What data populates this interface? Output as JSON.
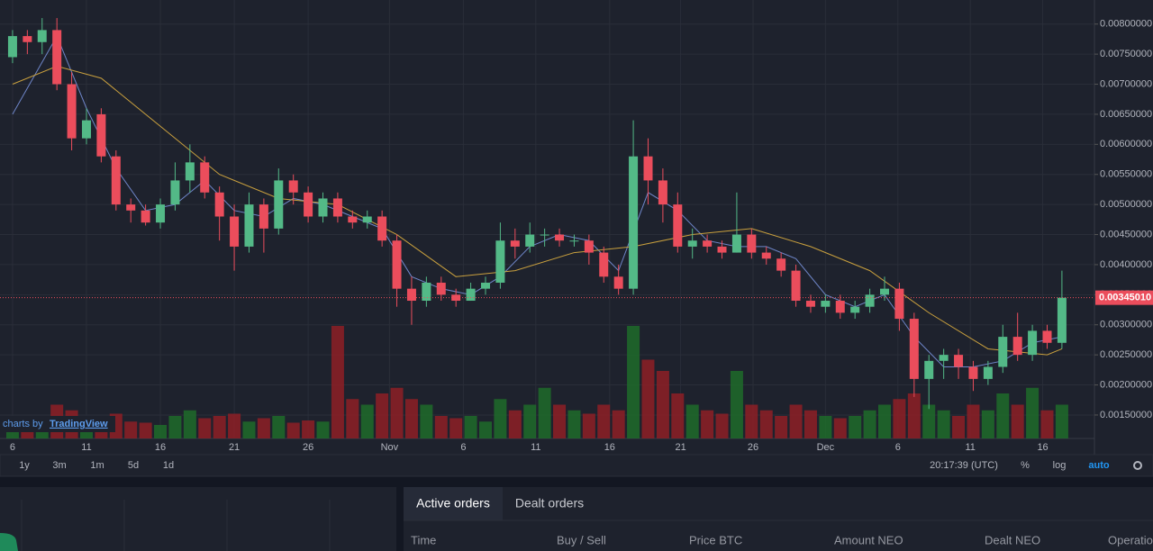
{
  "chart_data": {
    "type": "candlestick",
    "x": [
      0,
      1,
      2,
      3,
      4,
      5,
      6,
      7,
      8,
      9,
      10,
      11,
      12,
      13,
      14,
      15,
      16,
      17,
      18,
      19,
      20,
      21,
      22,
      23,
      24,
      25,
      26,
      27,
      28,
      29,
      30,
      31,
      32,
      33,
      34,
      35,
      36,
      37,
      38,
      39,
      40,
      41,
      42,
      43,
      44,
      45,
      46,
      47,
      48,
      49,
      50,
      51,
      52,
      53,
      54,
      55,
      56,
      57,
      58,
      59,
      60,
      61,
      62,
      63,
      64,
      65,
      66,
      67,
      68,
      69,
      70,
      71
    ],
    "open": [
      0.00745,
      0.0078,
      0.0077,
      0.0079,
      0.007,
      0.0061,
      0.0065,
      0.0058,
      0.005,
      0.0049,
      0.0047,
      0.005,
      0.0054,
      0.0057,
      0.0052,
      0.0048,
      0.0043,
      0.005,
      0.0046,
      0.0054,
      0.0052,
      0.0048,
      0.0051,
      0.0048,
      0.0047,
      0.0048,
      0.0044,
      0.0036,
      0.0034,
      0.0037,
      0.0035,
      0.0034,
      0.0036,
      0.0037,
      0.0044,
      0.0043,
      0.0045,
      0.0045,
      0.0044,
      0.0044,
      0.0042,
      0.0038,
      0.0036,
      0.0058,
      0.0054,
      0.005,
      0.0043,
      0.0044,
      0.0043,
      0.0042,
      0.0045,
      0.0042,
      0.0041,
      0.0039,
      0.0034,
      0.0033,
      0.0034,
      0.0032,
      0.0033,
      0.0035,
      0.0036,
      0.0031,
      0.0021,
      0.0024,
      0.0025,
      0.0023,
      0.0021,
      0.0023,
      0.0028,
      0.0025,
      0.0029,
      0.0027
    ],
    "close": [
      0.0078,
      0.0077,
      0.0079,
      0.007,
      0.0061,
      0.0064,
      0.0058,
      0.005,
      0.0049,
      0.0047,
      0.005,
      0.0054,
      0.0057,
      0.0052,
      0.0048,
      0.0043,
      0.005,
      0.0046,
      0.0054,
      0.0052,
      0.0048,
      0.0051,
      0.0048,
      0.0047,
      0.0048,
      0.0044,
      0.0036,
      0.0034,
      0.0037,
      0.0035,
      0.0034,
      0.0036,
      0.0037,
      0.0044,
      0.0043,
      0.0045,
      0.0045,
      0.0044,
      0.0044,
      0.0042,
      0.0038,
      0.0036,
      0.0058,
      0.0054,
      0.005,
      0.0043,
      0.0044,
      0.0043,
      0.0042,
      0.0045,
      0.0042,
      0.0041,
      0.0039,
      0.0034,
      0.0033,
      0.0034,
      0.0032,
      0.0033,
      0.0035,
      0.0036,
      0.0031,
      0.0021,
      0.0024,
      0.0025,
      0.0023,
      0.0021,
      0.0023,
      0.0028,
      0.0025,
      0.0029,
      0.0027,
      0.00345
    ],
    "high": [
      0.0079,
      0.0079,
      0.0081,
      0.0081,
      0.0072,
      0.0066,
      0.0066,
      0.0059,
      0.0051,
      0.005,
      0.0051,
      0.0057,
      0.006,
      0.0058,
      0.0053,
      0.005,
      0.0052,
      0.0051,
      0.0056,
      0.0055,
      0.0053,
      0.0052,
      0.0052,
      0.0049,
      0.0049,
      0.0049,
      0.0045,
      0.0038,
      0.0038,
      0.0038,
      0.0036,
      0.0037,
      0.0038,
      0.0047,
      0.0046,
      0.0047,
      0.0046,
      0.0046,
      0.0045,
      0.0045,
      0.0043,
      0.004,
      0.0064,
      0.0061,
      0.0056,
      0.0052,
      0.0046,
      0.0045,
      0.0044,
      0.0052,
      0.0046,
      0.0043,
      0.0042,
      0.004,
      0.0035,
      0.0035,
      0.0035,
      0.0034,
      0.0036,
      0.0038,
      0.0037,
      0.0032,
      0.0025,
      0.0026,
      0.0026,
      0.0024,
      0.0024,
      0.003,
      0.0032,
      0.003,
      0.003,
      0.0039
    ],
    "low": [
      0.00735,
      0.0075,
      0.0075,
      0.0069,
      0.0059,
      0.006,
      0.0057,
      0.0049,
      0.0047,
      0.00465,
      0.0046,
      0.0049,
      0.0052,
      0.0051,
      0.0044,
      0.0039,
      0.0042,
      0.0042,
      0.0045,
      0.005,
      0.0047,
      0.0047,
      0.0047,
      0.0046,
      0.0046,
      0.0043,
      0.0033,
      0.003,
      0.0033,
      0.0034,
      0.0033,
      0.0034,
      0.0035,
      0.0036,
      0.0041,
      0.0042,
      0.0043,
      0.0043,
      0.0043,
      0.004,
      0.0037,
      0.0035,
      0.0035,
      0.005,
      0.0047,
      0.0042,
      0.0041,
      0.0042,
      0.0041,
      0.0042,
      0.0041,
      0.004,
      0.0038,
      0.0033,
      0.0032,
      0.0032,
      0.0031,
      0.0031,
      0.0032,
      0.0034,
      0.0029,
      0.0018,
      0.0016,
      0.0021,
      0.0021,
      0.0019,
      0.002,
      0.0022,
      0.0024,
      0.0024,
      0.0026,
      0.0026
    ],
    "volume": [
      15,
      12,
      14,
      30,
      25,
      20,
      18,
      22,
      15,
      14,
      12,
      20,
      25,
      18,
      20,
      22,
      15,
      18,
      20,
      14,
      16,
      15,
      100,
      35,
      30,
      40,
      45,
      35,
      30,
      20,
      18,
      20,
      15,
      35,
      25,
      30,
      45,
      30,
      25,
      22,
      30,
      25,
      100,
      70,
      60,
      40,
      30,
      25,
      22,
      60,
      30,
      25,
      20,
      30,
      25,
      20,
      18,
      20,
      25,
      30,
      35,
      40,
      30,
      25,
      20,
      30,
      25,
      40,
      30,
      45,
      25,
      30
    ],
    "up_color": "#53b987",
    "down_color": "#eb4d5c",
    "up_volume_color": "#1e6b2a",
    "down_volume_color": "#8e1f26",
    "series": [
      {
        "color": "#6f86c9",
        "x": [
          0,
          3,
          5,
          7,
          9,
          11,
          13,
          15,
          17,
          19,
          21,
          23,
          25,
          27,
          29,
          31,
          33,
          35,
          37,
          39,
          41,
          43,
          45,
          47,
          49,
          51,
          53,
          55,
          57,
          59,
          61,
          63,
          65,
          67,
          69,
          71
        ],
        "values": [
          0.0065,
          0.0078,
          0.0066,
          0.0056,
          0.0049,
          0.005,
          0.0054,
          0.0049,
          0.0048,
          0.0051,
          0.005,
          0.0048,
          0.0046,
          0.0038,
          0.0036,
          0.0035,
          0.0038,
          0.0043,
          0.0045,
          0.0044,
          0.0039,
          0.0052,
          0.0049,
          0.0044,
          0.0043,
          0.0043,
          0.0041,
          0.0035,
          0.0033,
          0.0035,
          0.0028,
          0.0023,
          0.0023,
          0.0024,
          0.0027,
          0.0028
        ]
      },
      {
        "color": "#c9a03e",
        "x": [
          0,
          3,
          6,
          10,
          14,
          18,
          22,
          26,
          30,
          34,
          38,
          42,
          46,
          50,
          54,
          58,
          62,
          66,
          70,
          71
        ],
        "values": [
          0.007,
          0.0073,
          0.0071,
          0.0063,
          0.0055,
          0.0051,
          0.005,
          0.0045,
          0.0038,
          0.0039,
          0.0042,
          0.0043,
          0.0045,
          0.0046,
          0.0043,
          0.0039,
          0.0032,
          0.0026,
          0.0025,
          0.0026
        ]
      }
    ],
    "xlim": [
      -0.85,
      73.2
    ],
    "xticks": [
      {
        "value": 0,
        "label": "6"
      },
      {
        "value": 5,
        "label": "11"
      },
      {
        "value": 10,
        "label": "16"
      },
      {
        "value": 15,
        "label": "21"
      },
      {
        "value": 20,
        "label": "26"
      },
      {
        "value": 25.5,
        "label": "Nov"
      },
      {
        "value": 30.5,
        "label": "6"
      },
      {
        "value": 35.4,
        "label": "11"
      },
      {
        "value": 40.4,
        "label": "16"
      },
      {
        "value": 45.2,
        "label": "21"
      },
      {
        "value": 50.1,
        "label": "26"
      },
      {
        "value": 55,
        "label": "Dec"
      },
      {
        "value": 59.9,
        "label": "6"
      },
      {
        "value": 64.8,
        "label": "11"
      },
      {
        "value": 69.7,
        "label": "16"
      }
    ],
    "ylim": [
      0.00111,
      0.0084
    ],
    "yticks": [
      {
        "value": 0.008,
        "label": "0.00800000"
      },
      {
        "value": 0.0075,
        "label": "0.00750000"
      },
      {
        "value": 0.007,
        "label": "0.00700000"
      },
      {
        "value": 0.0065,
        "label": "0.00650000"
      },
      {
        "value": 0.006,
        "label": "0.00600000"
      },
      {
        "value": 0.0055,
        "label": "0.00550000"
      },
      {
        "value": 0.005,
        "label": "0.00500000"
      },
      {
        "value": 0.0045,
        "label": "0.00450000"
      },
      {
        "value": 0.004,
        "label": "0.00400000"
      },
      {
        "value": 0.0035,
        "label": "0.00350000"
      },
      {
        "value": 0.003,
        "label": "0.00300000"
      },
      {
        "value": 0.0025,
        "label": "0.00250000"
      },
      {
        "value": 0.002,
        "label": "0.00200000"
      },
      {
        "value": 0.0015,
        "label": "0.00150000"
      }
    ],
    "last_price": {
      "value": 0.0034501,
      "label": "0.00345010"
    },
    "grid": true
  },
  "watermark": {
    "text": "charts by",
    "link": "TradingView"
  },
  "toolbar": {
    "ranges": [
      "1y",
      "3m",
      "1m",
      "5d",
      "1d"
    ],
    "time": "20:17:39 (UTC)",
    "percent": "%",
    "log": "log",
    "auto": "auto"
  },
  "orders": {
    "tabs": [
      "Active orders",
      "Dealt orders"
    ],
    "columns": [
      "Time",
      "Buy / Sell",
      "Price BTC",
      "Amount NEO",
      "Dealt NEO",
      "Operation"
    ]
  }
}
